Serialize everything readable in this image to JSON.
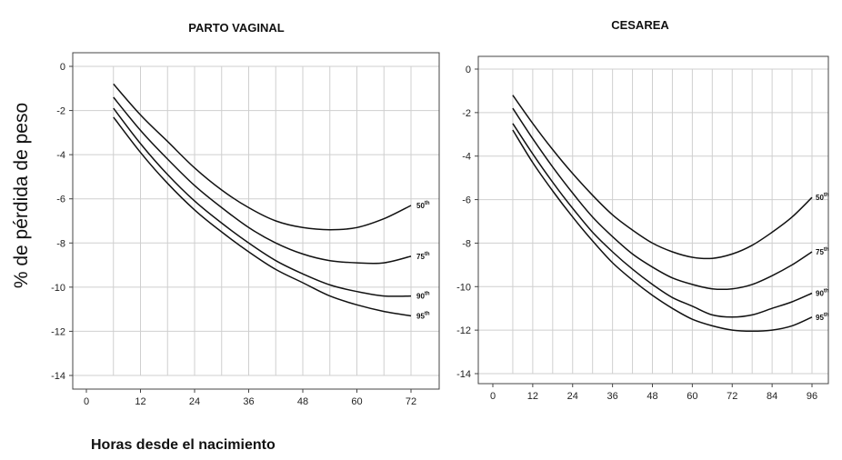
{
  "ylabel": "% de pérdida de peso",
  "xlabel": "Horas desde el nacimiento",
  "chart_data": [
    {
      "type": "line",
      "title": "PARTO VAGINAL",
      "xlim": [
        0,
        72
      ],
      "ylim": [
        -14,
        0
      ],
      "xticks": [
        "0",
        "12",
        "24",
        "36",
        "48",
        "60",
        "72"
      ],
      "yticks": [
        "0",
        "-2",
        "-4",
        "-6",
        "-8",
        "-10",
        "-12",
        "-14"
      ],
      "grid_x": [
        6,
        12,
        18,
        24,
        30,
        36,
        42,
        48,
        54,
        60,
        66,
        72
      ],
      "series": [
        {
          "name": "50th",
          "x": [
            6,
            12,
            18,
            24,
            30,
            36,
            42,
            48,
            54,
            60,
            66,
            72
          ],
          "y": [
            -0.8,
            -2.2,
            -3.4,
            -4.6,
            -5.6,
            -6.4,
            -7.0,
            -7.3,
            -7.4,
            -7.3,
            -6.9,
            -6.3
          ]
        },
        {
          "name": "75th",
          "x": [
            6,
            12,
            18,
            24,
            30,
            36,
            42,
            48,
            54,
            60,
            66,
            72
          ],
          "y": [
            -1.4,
            -2.9,
            -4.2,
            -5.4,
            -6.4,
            -7.3,
            -8.0,
            -8.5,
            -8.8,
            -8.9,
            -8.9,
            -8.6
          ]
        },
        {
          "name": "90th",
          "x": [
            6,
            12,
            18,
            24,
            30,
            36,
            42,
            48,
            54,
            60,
            66,
            72
          ],
          "y": [
            -1.9,
            -3.5,
            -4.9,
            -6.1,
            -7.1,
            -8.0,
            -8.8,
            -9.4,
            -9.9,
            -10.2,
            -10.4,
            -10.4
          ]
        },
        {
          "name": "95th",
          "x": [
            6,
            12,
            18,
            24,
            30,
            36,
            42,
            48,
            54,
            60,
            66,
            72
          ],
          "y": [
            -2.3,
            -3.9,
            -5.3,
            -6.5,
            -7.5,
            -8.4,
            -9.2,
            -9.8,
            -10.4,
            -10.8,
            -11.1,
            -11.3
          ]
        }
      ]
    },
    {
      "type": "line",
      "title": "CESAREA",
      "xlim": [
        0,
        96
      ],
      "ylim": [
        -14,
        0
      ],
      "xticks": [
        "0",
        "12",
        "24",
        "36",
        "48",
        "60",
        "72",
        "84",
        "96"
      ],
      "yticks": [
        "0",
        "-2",
        "-4",
        "-6",
        "-8",
        "-10",
        "-12",
        "-14"
      ],
      "grid_x": [
        6,
        12,
        18,
        24,
        30,
        36,
        42,
        48,
        54,
        60,
        66,
        72,
        78,
        84,
        90,
        96
      ],
      "series": [
        {
          "name": "50th",
          "x": [
            6,
            12,
            18,
            24,
            30,
            36,
            42,
            48,
            54,
            60,
            66,
            72,
            78,
            84,
            90,
            96
          ],
          "y": [
            -1.2,
            -2.5,
            -3.7,
            -4.8,
            -5.8,
            -6.7,
            -7.4,
            -8.0,
            -8.4,
            -8.65,
            -8.7,
            -8.5,
            -8.1,
            -7.5,
            -6.8,
            -5.9
          ]
        },
        {
          "name": "75th",
          "x": [
            6,
            12,
            18,
            24,
            30,
            36,
            42,
            48,
            54,
            60,
            66,
            72,
            78,
            84,
            90,
            96
          ],
          "y": [
            -1.8,
            -3.2,
            -4.5,
            -5.7,
            -6.8,
            -7.7,
            -8.5,
            -9.1,
            -9.6,
            -9.9,
            -10.1,
            -10.1,
            -9.9,
            -9.5,
            -9.0,
            -8.4
          ]
        },
        {
          "name": "90th",
          "x": [
            6,
            12,
            18,
            24,
            30,
            36,
            42,
            48,
            54,
            60,
            66,
            72,
            78,
            84,
            90,
            96
          ],
          "y": [
            -2.5,
            -3.9,
            -5.2,
            -6.4,
            -7.5,
            -8.4,
            -9.2,
            -9.9,
            -10.5,
            -10.9,
            -11.3,
            -11.4,
            -11.3,
            -11.0,
            -10.7,
            -10.3
          ]
        },
        {
          "name": "95th",
          "x": [
            6,
            12,
            18,
            24,
            30,
            36,
            42,
            48,
            54,
            60,
            66,
            72,
            78,
            84,
            90,
            96
          ],
          "y": [
            -2.8,
            -4.3,
            -5.6,
            -6.8,
            -7.9,
            -8.9,
            -9.7,
            -10.4,
            -11.0,
            -11.5,
            -11.8,
            -12.0,
            -12.05,
            -12.0,
            -11.8,
            -11.4
          ]
        }
      ]
    }
  ]
}
